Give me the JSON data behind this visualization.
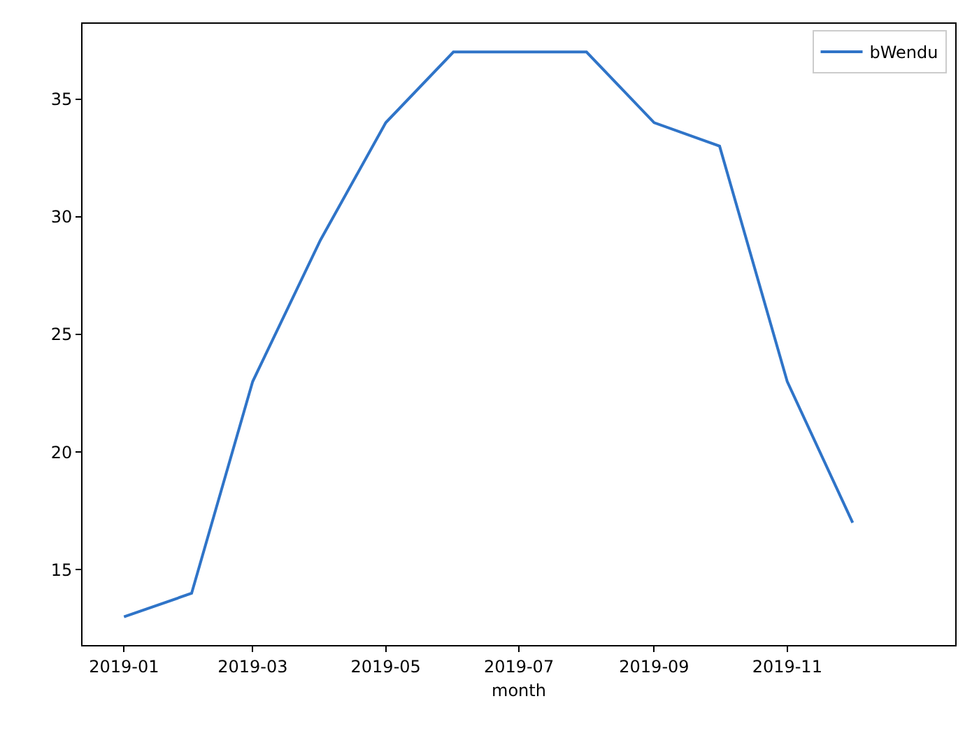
{
  "chart_data": {
    "type": "line",
    "xlabel": "month",
    "x": [
      "2019-01",
      "2019-02",
      "2019-03",
      "2019-04",
      "2019-05",
      "2019-06",
      "2019-07",
      "2019-08",
      "2019-09",
      "2019-10",
      "2019-11",
      "2019-12"
    ],
    "series": [
      {
        "name": "bWendu",
        "color": "#2f74c8",
        "values": [
          13,
          14,
          23,
          29,
          34,
          37,
          37,
          37,
          34,
          33,
          23,
          17
        ]
      }
    ],
    "xlim": [
      "2018-12-13",
      "2020-01-17"
    ],
    "xticks": [
      "2019-01",
      "2019-03",
      "2019-05",
      "2019-07",
      "2019-09",
      "2019-11"
    ],
    "ylim": [
      11.8,
      38.2
    ],
    "yticks": [
      15,
      20,
      25,
      30,
      35
    ],
    "legend": "top right",
    "marker": "none",
    "line_style": "solid"
  }
}
